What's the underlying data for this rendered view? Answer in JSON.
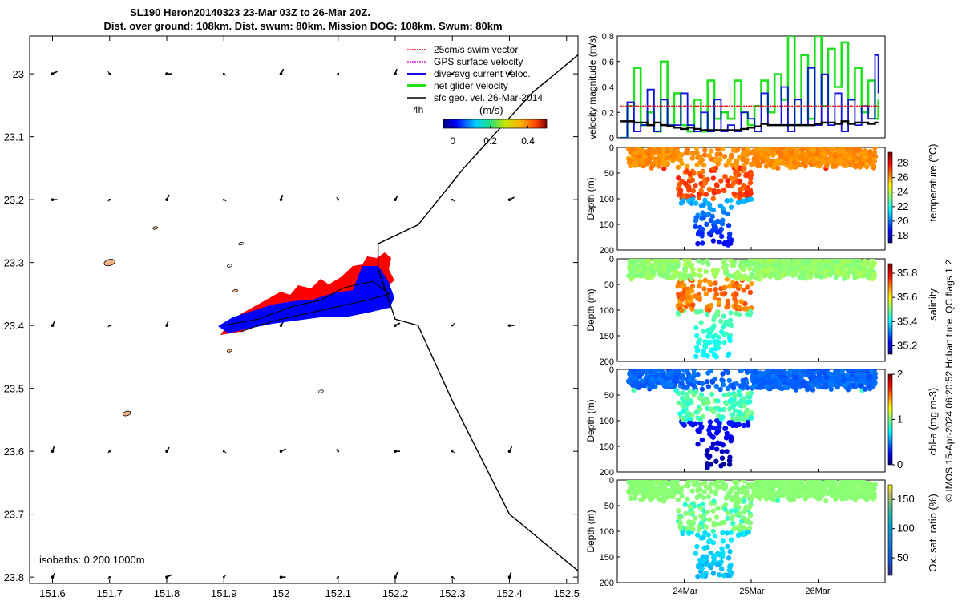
{
  "title": {
    "line1": "SL190 Heron20140323 23-Mar 03Z to 26-Mar 20Z.",
    "line2": "Dist. over ground: 108km. Dist. swum: 80km. Mission DOG: 108km. Swum: 80km"
  },
  "colors": {
    "swim_vector": "#ff0000",
    "gps_velocity": "#e020e0",
    "dive_avg_current": "#1010e0",
    "net_glider_velocity": "#20e020",
    "sfc_geo_velocity": "#000000",
    "track_red": "#ff0000",
    "track_blue": "#0000ff",
    "island_fill": "#f4b183"
  },
  "map": {
    "legend": [
      {
        "label": "25cm/s swim vector",
        "color": "#ff0000"
      },
      {
        "label": "GPS surface velocity",
        "color": "#e020e0"
      },
      {
        "label": "dive-avg current veloc.",
        "color": "#1010e0"
      },
      {
        "label": "net glider velocity",
        "color": "#20e020"
      },
      {
        "label": "sfc geo. vel. 26-Mar-2014",
        "color": "#000000"
      }
    ],
    "time_label": "4h",
    "colorbar_unit": "(m/s)",
    "colorbar_ticks": [
      {
        "value": 0,
        "label": "0"
      },
      {
        "value": 0.2,
        "label": "0.2"
      },
      {
        "value": 0.4,
        "label": "0.4"
      }
    ],
    "colorbar_range": [
      -0.05,
      0.5
    ],
    "isobaths_label": "isobaths: 0    200  1000m"
  },
  "chart_data": [
    {
      "type": "scatter",
      "name": "glider-track-map",
      "title": "SL190 Heron20140323 23-Mar 03Z to 26-Mar 20Z.",
      "xlabel": "",
      "ylabel": "",
      "xlim": [
        151.56,
        152.52
      ],
      "ylim": [
        -23.81,
        -22.94
      ],
      "xticks": [
        151.6,
        151.7,
        151.8,
        151.9,
        152,
        152.1,
        152.2,
        152.3,
        152.4,
        152.5
      ],
      "xtick_labels": [
        "151.6",
        "151.7",
        "151.8",
        "151.9",
        "152",
        "152.1",
        "152.2",
        "152.3",
        "152.4",
        "152.5"
      ],
      "yticks": [
        -23,
        -23.1,
        -23.2,
        -23.3,
        -23.4,
        -23.5,
        -23.6,
        -23.7,
        -23.8
      ],
      "ytick_labels": [
        "-23",
        "23.1",
        "23.2",
        "23.3",
        "23.4",
        "23.5",
        "23.6",
        "23.7",
        "23.8"
      ],
      "shelf_edge_isobath": [
        [
          152.52,
          -22.97
        ],
        [
          152.44,
          -23.03
        ],
        [
          152.32,
          -23.15
        ],
        [
          152.24,
          -23.24
        ],
        [
          152.17,
          -23.27
        ],
        [
          152.17,
          -23.31
        ],
        [
          152.2,
          -23.39
        ],
        [
          152.24,
          -23.4
        ],
        [
          152.3,
          -23.52
        ],
        [
          152.35,
          -23.61
        ],
        [
          152.4,
          -23.7
        ],
        [
          152.52,
          -23.79
        ]
      ],
      "glider_track": [
        [
          151.9,
          -23.4
        ],
        [
          151.96,
          -23.39
        ],
        [
          152.02,
          -23.37
        ],
        [
          152.07,
          -23.36
        ],
        [
          152.11,
          -23.34
        ],
        [
          152.16,
          -23.33
        ],
        [
          152.19,
          -23.35
        ],
        [
          152.15,
          -23.36
        ],
        [
          152.1,
          -23.37
        ],
        [
          152.05,
          -23.38
        ],
        [
          152.0,
          -23.39
        ],
        [
          151.96,
          -23.4
        ],
        [
          151.93,
          -23.41
        ]
      ],
      "islands": [
        {
          "lon": 151.7,
          "lat": -23.3
        },
        {
          "lon": 151.78,
          "lat": -23.245
        },
        {
          "lon": 151.92,
          "lat": -23.345
        },
        {
          "lon": 151.91,
          "lat": -23.44
        },
        {
          "lon": 151.73,
          "lat": -23.54
        },
        {
          "lon": 152.07,
          "lat": -23.505
        },
        {
          "lon": 151.93,
          "lat": -23.27
        },
        {
          "lon": 151.91,
          "lat": -23.305
        }
      ],
      "geo_velocity_grid": {
        "lons": [
          151.6,
          151.8,
          152.0,
          152.2,
          152.4
        ],
        "lats": [
          -23.0,
          -23.2,
          -23.4,
          -23.6,
          -23.8
        ]
      }
    },
    {
      "type": "line",
      "name": "velocity-magnitude",
      "ylabel": "velocity magnitude (m/s)",
      "ylim": [
        0,
        0.8
      ],
      "yticks": [
        0,
        0.2,
        0.4,
        0.6,
        0.8
      ],
      "ytick_labels": [
        "0",
        "0.2",
        "0.4",
        "0.6",
        "0.8"
      ],
      "xlim": [
        23.0,
        27.0
      ],
      "x": [
        23.05,
        23.15,
        23.25,
        23.35,
        23.45,
        23.55,
        23.65,
        23.75,
        23.85,
        23.95,
        24.05,
        24.15,
        24.25,
        24.35,
        24.45,
        24.55,
        24.65,
        24.75,
        24.85,
        24.95,
        25.05,
        25.15,
        25.25,
        25.35,
        25.45,
        25.55,
        25.65,
        25.75,
        25.85,
        25.95,
        26.05,
        26.15,
        26.25,
        26.35,
        26.45,
        26.55,
        26.65,
        26.75,
        26.85,
        26.9
      ],
      "series": [
        {
          "name": "net glider velocity",
          "color": "#20e020",
          "values": [
            0.0,
            0.25,
            0.55,
            0.1,
            0.2,
            0.05,
            0.6,
            0.1,
            0.35,
            0.1,
            0.05,
            0.3,
            0.05,
            0.45,
            0.15,
            0.2,
            0.15,
            0.45,
            0.2,
            0.1,
            0.25,
            0.45,
            0.2,
            0.5,
            0.3,
            0.8,
            0.1,
            0.65,
            0.15,
            0.8,
            0.25,
            0.7,
            0.4,
            0.75,
            0.3,
            0.55,
            0.2,
            0.45,
            0.15,
            0.3
          ]
        },
        {
          "name": "dive-avg current veloc.",
          "color": "#1010e0",
          "values": [
            0.0,
            0.28,
            0.05,
            0.1,
            0.38,
            0.05,
            0.3,
            0.1,
            0.1,
            0.35,
            0.1,
            0.05,
            0.2,
            0.05,
            0.3,
            0.05,
            0.1,
            0.05,
            0.2,
            0.15,
            0.05,
            0.35,
            0.1,
            0.1,
            0.4,
            0.05,
            0.3,
            0.1,
            0.55,
            0.1,
            0.5,
            0.1,
            0.35,
            0.05,
            0.3,
            0.1,
            0.25,
            0.15,
            0.65,
            0.35
          ]
        },
        {
          "name": "25cm/s swim vector",
          "color": "#ff0000",
          "values": [
            0.25,
            0.25,
            0.25,
            0.25,
            0.25,
            0.25,
            0.25,
            0.25,
            0.25,
            0.25,
            0.25,
            0.25,
            0.25,
            0.25,
            0.25,
            0.25,
            0.25,
            0.25,
            0.25,
            0.25,
            0.25,
            0.25,
            0.25,
            0.25,
            0.25,
            0.25,
            0.25,
            0.25,
            0.25,
            0.25,
            0.25,
            0.25,
            0.25,
            0.25,
            0.25,
            0.25,
            0.25,
            0.25,
            0.25,
            0.25
          ]
        },
        {
          "name": "sfc geo. vel.",
          "color": "#000000",
          "values": [
            0.13,
            0.13,
            0.12,
            0.12,
            0.1,
            0.12,
            0.1,
            0.09,
            0.08,
            0.07,
            0.08,
            0.07,
            0.06,
            0.06,
            0.06,
            0.06,
            0.06,
            0.06,
            0.07,
            0.08,
            0.09,
            0.11,
            0.1,
            0.1,
            0.1,
            0.1,
            0.1,
            0.1,
            0.1,
            0.11,
            0.12,
            0.12,
            0.11,
            0.13,
            0.11,
            0.12,
            0.12,
            0.11,
            0.12,
            0.12
          ]
        }
      ]
    },
    {
      "type": "heatmap",
      "name": "temperature-section",
      "ylabel": "Depth (m)",
      "colorbar_label": "temperature (°C)",
      "ylim": [
        0,
        200
      ],
      "yticks": [
        0,
        50,
        100,
        150,
        200
      ],
      "ytick_labels": [
        "0",
        "50",
        "100",
        "150",
        "200"
      ],
      "clim": [
        17,
        29.5
      ],
      "cticks": [
        18,
        20,
        22,
        24,
        26,
        28
      ],
      "ctick_labels": [
        "18",
        "20",
        "22",
        "24",
        "26",
        "28"
      ],
      "surface_value": 26.2,
      "core_value": 27.0,
      "deep_value": 18.5
    },
    {
      "type": "heatmap",
      "name": "salinity-section",
      "ylabel": "Depth (m)",
      "colorbar_label": "salinity",
      "ylim": [
        0,
        200
      ],
      "yticks": [
        0,
        50,
        100,
        150,
        200
      ],
      "ytick_labels": [
        "0",
        "50",
        "100",
        "150",
        "200"
      ],
      "clim": [
        35.13,
        35.88
      ],
      "cticks": [
        35.2,
        35.4,
        35.6,
        35.8
      ],
      "ctick_labels": [
        "35.2",
        "35.4",
        "35.6",
        "35.8"
      ],
      "surface_value": 35.52,
      "core_value": 35.7,
      "deep_value": 35.4
    },
    {
      "type": "heatmap",
      "name": "chla-section",
      "ylabel": "Depth (m)",
      "colorbar_label": "chl-a (mg m-3)",
      "ylim": [
        0,
        200
      ],
      "yticks": [
        0,
        50,
        100,
        150,
        200
      ],
      "ytick_labels": [
        "0",
        "50",
        "100",
        "150",
        "200"
      ],
      "clim": [
        0,
        2
      ],
      "cticks": [
        0,
        1,
        2
      ],
      "ctick_labels": [
        "0",
        "1",
        "2"
      ],
      "surface_value": 0.45,
      "core_value": 0.9,
      "deep_value": 0.05
    },
    {
      "type": "heatmap",
      "name": "oxygen-section",
      "ylabel": "Depth (m)",
      "colorbar_label": "Ox. sat. ratio (%)",
      "ylim": [
        0,
        200
      ],
      "yticks": [
        0,
        50,
        100,
        150,
        200
      ],
      "ytick_labels": [
        "0",
        "50",
        "100",
        "150",
        "200"
      ],
      "clim": [
        20,
        175
      ],
      "cticks": [
        50,
        100,
        150
      ],
      "ctick_labels": [
        "50",
        "100",
        "150"
      ],
      "surface_value": 112,
      "core_value": 108,
      "deep_value": 80
    }
  ],
  "time_axis": {
    "labels": [
      "24Mar",
      "25Mar",
      "26Mar"
    ],
    "values": [
      24.0,
      25.0,
      26.0
    ]
  },
  "footer": "© IMOS 15-Apr-2024 06:20:52 Hobart time. QC flags 1  2"
}
